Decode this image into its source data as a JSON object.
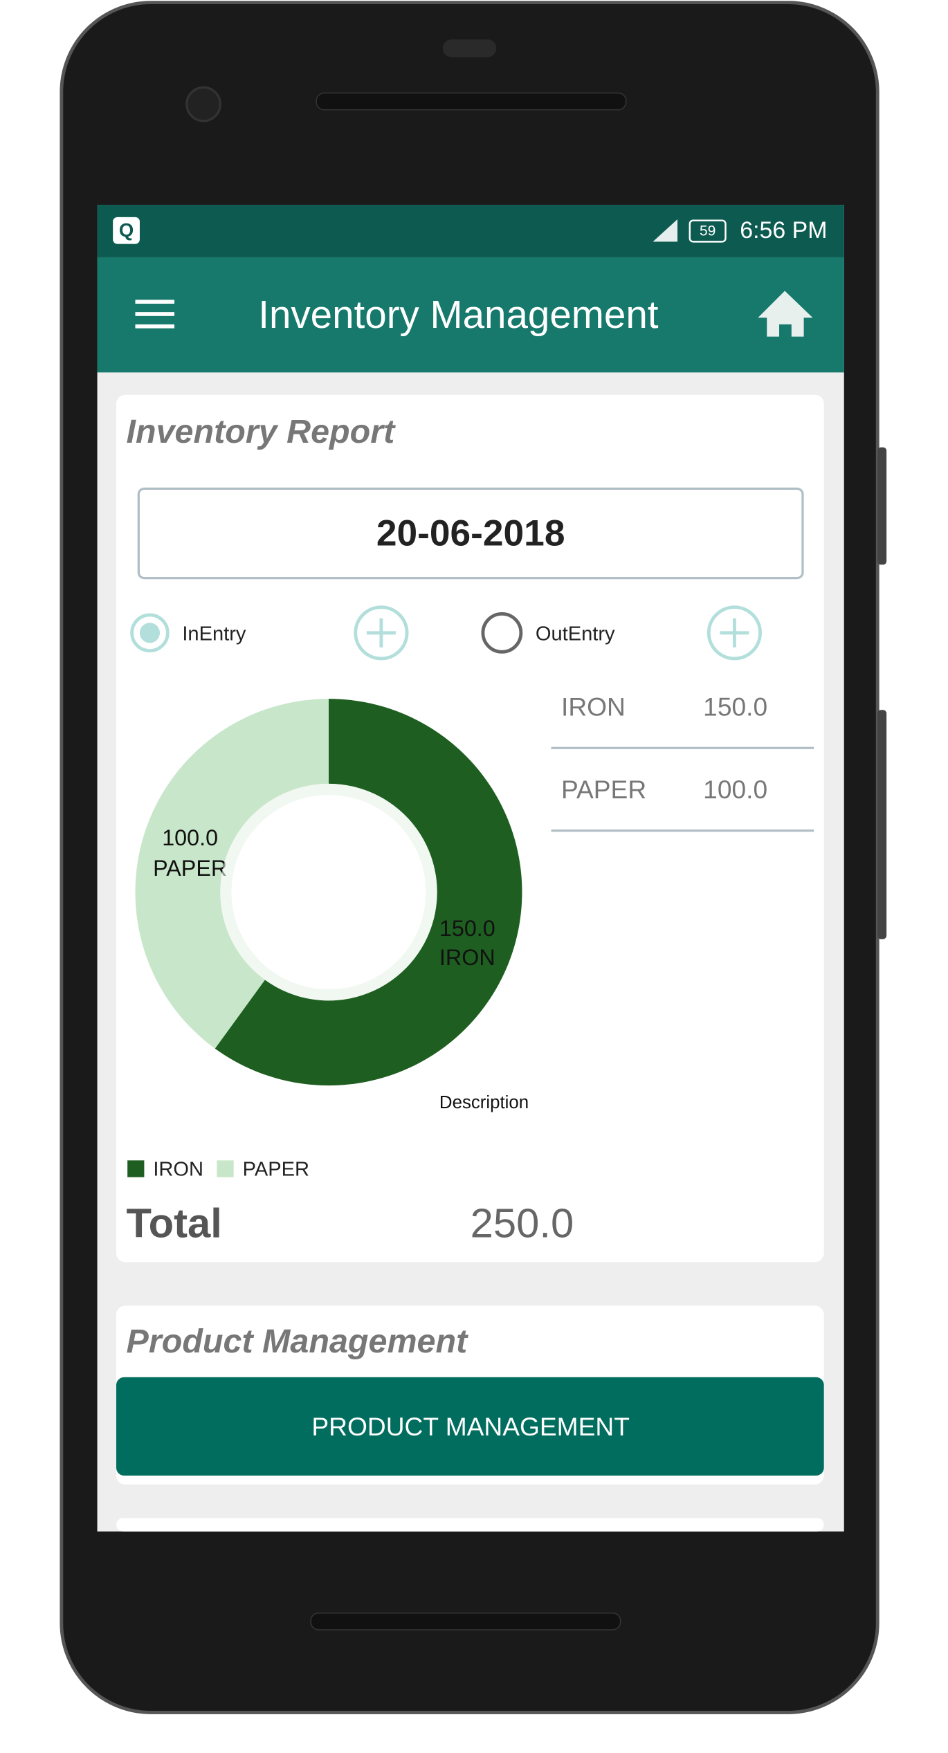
{
  "status_bar": {
    "battery": "59",
    "time": "6:56 PM"
  },
  "app_bar": {
    "title": "Inventory Management"
  },
  "inventory_report": {
    "title": "Inventory Report",
    "date": "20-06-2018",
    "options": [
      "InEntry",
      "OutEntry"
    ],
    "chart": {
      "type": "donut",
      "categories": [
        "IRON",
        "PAPER"
      ],
      "values": [
        150,
        100
      ],
      "value_labels": [
        "150.0",
        "100.0"
      ],
      "colors": [
        "#1e5e20",
        "#c8e6c9"
      ],
      "description": "Description"
    },
    "table": {
      "rows": [
        [
          "IRON",
          "150.0"
        ],
        [
          "PAPER",
          "100.0"
        ]
      ]
    },
    "total_label": "Total",
    "total_value": "250.0"
  },
  "product_management": {
    "title": "Product Management",
    "button": "PRODUCT MANAGEMENT"
  }
}
